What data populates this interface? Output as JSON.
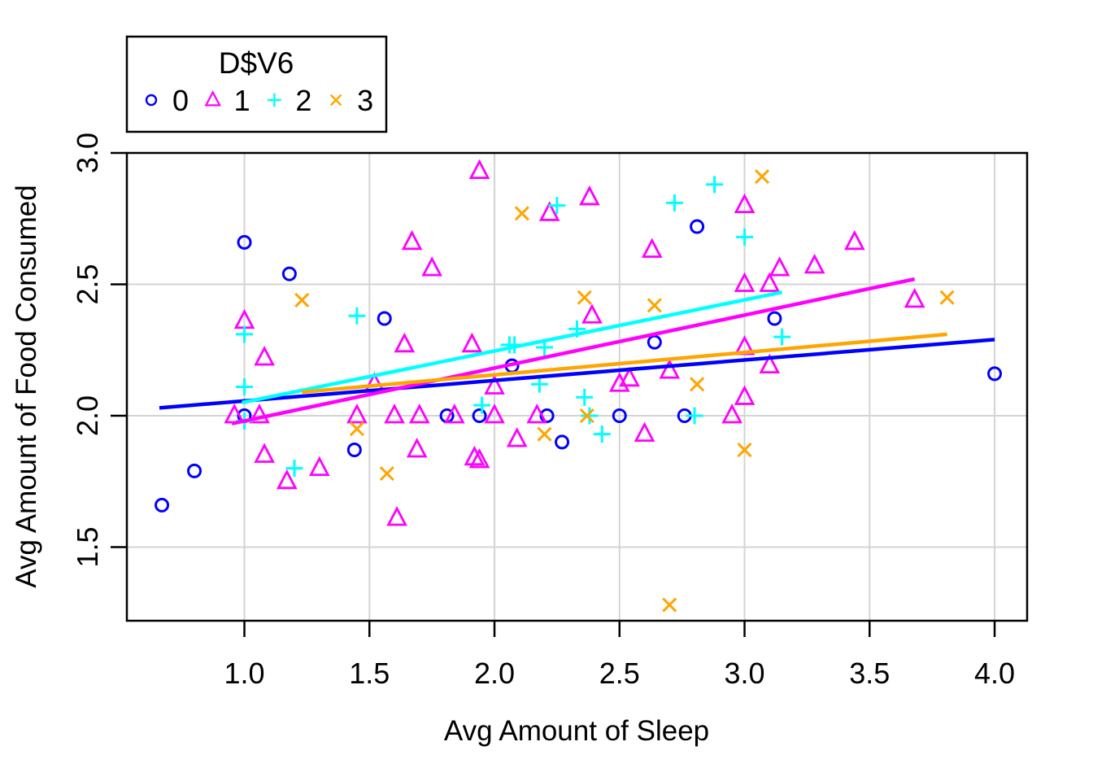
{
  "figure": {
    "background": "#ffffff"
  },
  "axes": {
    "x_title": "Avg Amount of Sleep",
    "y_title": "Avg Amount of Food Consumed",
    "xtick_labels": [
      "1.0",
      "1.5",
      "2.0",
      "2.5",
      "3.0",
      "3.5",
      "4.0"
    ],
    "ytick_labels": [
      "1.5",
      "2.0",
      "2.5",
      "3.0"
    ]
  },
  "legend": {
    "title": "D$V6",
    "items": [
      {
        "label": "0",
        "marker": "circle",
        "color": "#0000ff"
      },
      {
        "label": "1",
        "marker": "triangle",
        "color": "#ff00ff"
      },
      {
        "label": "2",
        "marker": "plus",
        "color": "#00ffff"
      },
      {
        "label": "3",
        "marker": "x",
        "color": "#ffa500"
      }
    ]
  },
  "colors": {
    "grid": "#d4d4d4",
    "frame": "#000000",
    "background": "#ffffff",
    "group0": "#0000ff",
    "group1": "#ff00ff",
    "group2": "#00ffff",
    "group3": "#ffa500"
  },
  "chart_data": {
    "type": "scatter",
    "title": "",
    "xlabel": "Avg Amount of Sleep",
    "ylabel": "Avg Amount of Food Consumed",
    "xlim": [
      0.53,
      4.13
    ],
    "ylim": [
      1.22,
      3.0
    ],
    "xticks": [
      1.0,
      1.5,
      2.0,
      2.5,
      3.0,
      3.5,
      4.0
    ],
    "yticks": [
      1.5,
      2.0,
      2.5,
      3.0
    ],
    "grid": true,
    "legend_position": "top-left",
    "legend_title": "D$V6",
    "series": [
      {
        "name": "0",
        "marker": "circle",
        "color": "#0000ff",
        "points": [
          [
            0.67,
            1.66
          ],
          [
            0.8,
            1.79
          ],
          [
            1.0,
            2.0
          ],
          [
            1.0,
            2.66
          ],
          [
            1.18,
            2.54
          ],
          [
            1.44,
            1.87
          ],
          [
            1.56,
            2.37
          ],
          [
            1.81,
            2.0
          ],
          [
            1.94,
            2.0
          ],
          [
            2.07,
            2.19
          ],
          [
            2.21,
            2.0
          ],
          [
            2.27,
            1.9
          ],
          [
            2.5,
            2.0
          ],
          [
            2.64,
            2.28
          ],
          [
            2.76,
            2.0
          ],
          [
            2.81,
            2.72
          ],
          [
            3.12,
            2.37
          ],
          [
            4.0,
            2.16
          ]
        ]
      },
      {
        "name": "1",
        "marker": "triangle",
        "color": "#ff00ff",
        "points": [
          [
            0.96,
            2.0
          ],
          [
            1.0,
            2.36
          ],
          [
            1.06,
            2.0
          ],
          [
            1.08,
            2.22
          ],
          [
            1.08,
            1.85
          ],
          [
            1.17,
            1.75
          ],
          [
            1.3,
            1.8
          ],
          [
            1.45,
            2.0
          ],
          [
            1.52,
            2.12
          ],
          [
            1.6,
            2.0
          ],
          [
            1.61,
            1.61
          ],
          [
            1.64,
            2.27
          ],
          [
            1.67,
            2.66
          ],
          [
            1.69,
            1.87
          ],
          [
            1.7,
            2.0
          ],
          [
            1.75,
            2.56
          ],
          [
            1.84,
            2.0
          ],
          [
            1.91,
            2.27
          ],
          [
            1.92,
            1.84
          ],
          [
            1.94,
            1.83
          ],
          [
            1.94,
            2.93
          ],
          [
            2.0,
            2.11
          ],
          [
            2.0,
            2.0
          ],
          [
            2.09,
            1.91
          ],
          [
            2.17,
            2.0
          ],
          [
            2.22,
            2.77
          ],
          [
            2.38,
            2.83
          ],
          [
            2.39,
            2.38
          ],
          [
            2.5,
            2.12
          ],
          [
            2.54,
            2.14
          ],
          [
            2.6,
            1.93
          ],
          [
            2.63,
            2.63
          ],
          [
            2.7,
            2.17
          ],
          [
            2.95,
            2.0
          ],
          [
            3.0,
            2.8
          ],
          [
            3.0,
            2.5
          ],
          [
            3.0,
            2.26
          ],
          [
            3.0,
            2.07
          ],
          [
            3.1,
            2.5
          ],
          [
            3.1,
            2.19
          ],
          [
            3.14,
            2.56
          ],
          [
            3.28,
            2.57
          ],
          [
            3.44,
            2.66
          ],
          [
            3.68,
            2.44
          ]
        ]
      },
      {
        "name": "2",
        "marker": "plus",
        "color": "#00ffff",
        "points": [
          [
            1.0,
            2.31
          ],
          [
            1.0,
            2.11
          ],
          [
            1.0,
            1.98
          ],
          [
            1.2,
            1.8
          ],
          [
            1.45,
            2.38
          ],
          [
            1.95,
            2.04
          ],
          [
            2.06,
            2.27
          ],
          [
            2.08,
            2.27
          ],
          [
            2.18,
            2.12
          ],
          [
            2.2,
            2.26
          ],
          [
            2.25,
            2.8
          ],
          [
            2.33,
            2.33
          ],
          [
            2.36,
            2.07
          ],
          [
            2.38,
            2.0
          ],
          [
            2.43,
            1.93
          ],
          [
            2.72,
            2.81
          ],
          [
            2.8,
            2.0
          ],
          [
            2.88,
            2.88
          ],
          [
            3.0,
            2.68
          ],
          [
            3.15,
            2.3
          ]
        ]
      },
      {
        "name": "3",
        "marker": "x",
        "color": "#ffa500",
        "points": [
          [
            1.23,
            2.44
          ],
          [
            1.45,
            1.95
          ],
          [
            1.57,
            1.78
          ],
          [
            2.11,
            2.77
          ],
          [
            2.2,
            1.93
          ],
          [
            2.36,
            2.45
          ],
          [
            2.37,
            2.0
          ],
          [
            2.64,
            2.42
          ],
          [
            2.7,
            1.28
          ],
          [
            2.81,
            2.12
          ],
          [
            3.0,
            1.87
          ],
          [
            3.07,
            2.91
          ],
          [
            3.81,
            2.45
          ]
        ]
      }
    ],
    "fit_lines": [
      {
        "series": "0",
        "color": "#0000ff",
        "x1": 0.66,
        "y1": 2.03,
        "x2": 4.0,
        "y2": 2.29
      },
      {
        "series": "1",
        "color": "#ff00ff",
        "x1": 0.95,
        "y1": 1.97,
        "x2": 3.68,
        "y2": 2.52
      },
      {
        "series": "2",
        "color": "#00ffff",
        "x1": 0.99,
        "y1": 2.05,
        "x2": 3.15,
        "y2": 2.47
      },
      {
        "series": "3",
        "color": "#ffa500",
        "x1": 1.23,
        "y1": 2.09,
        "x2": 3.81,
        "y2": 2.31
      }
    ]
  }
}
